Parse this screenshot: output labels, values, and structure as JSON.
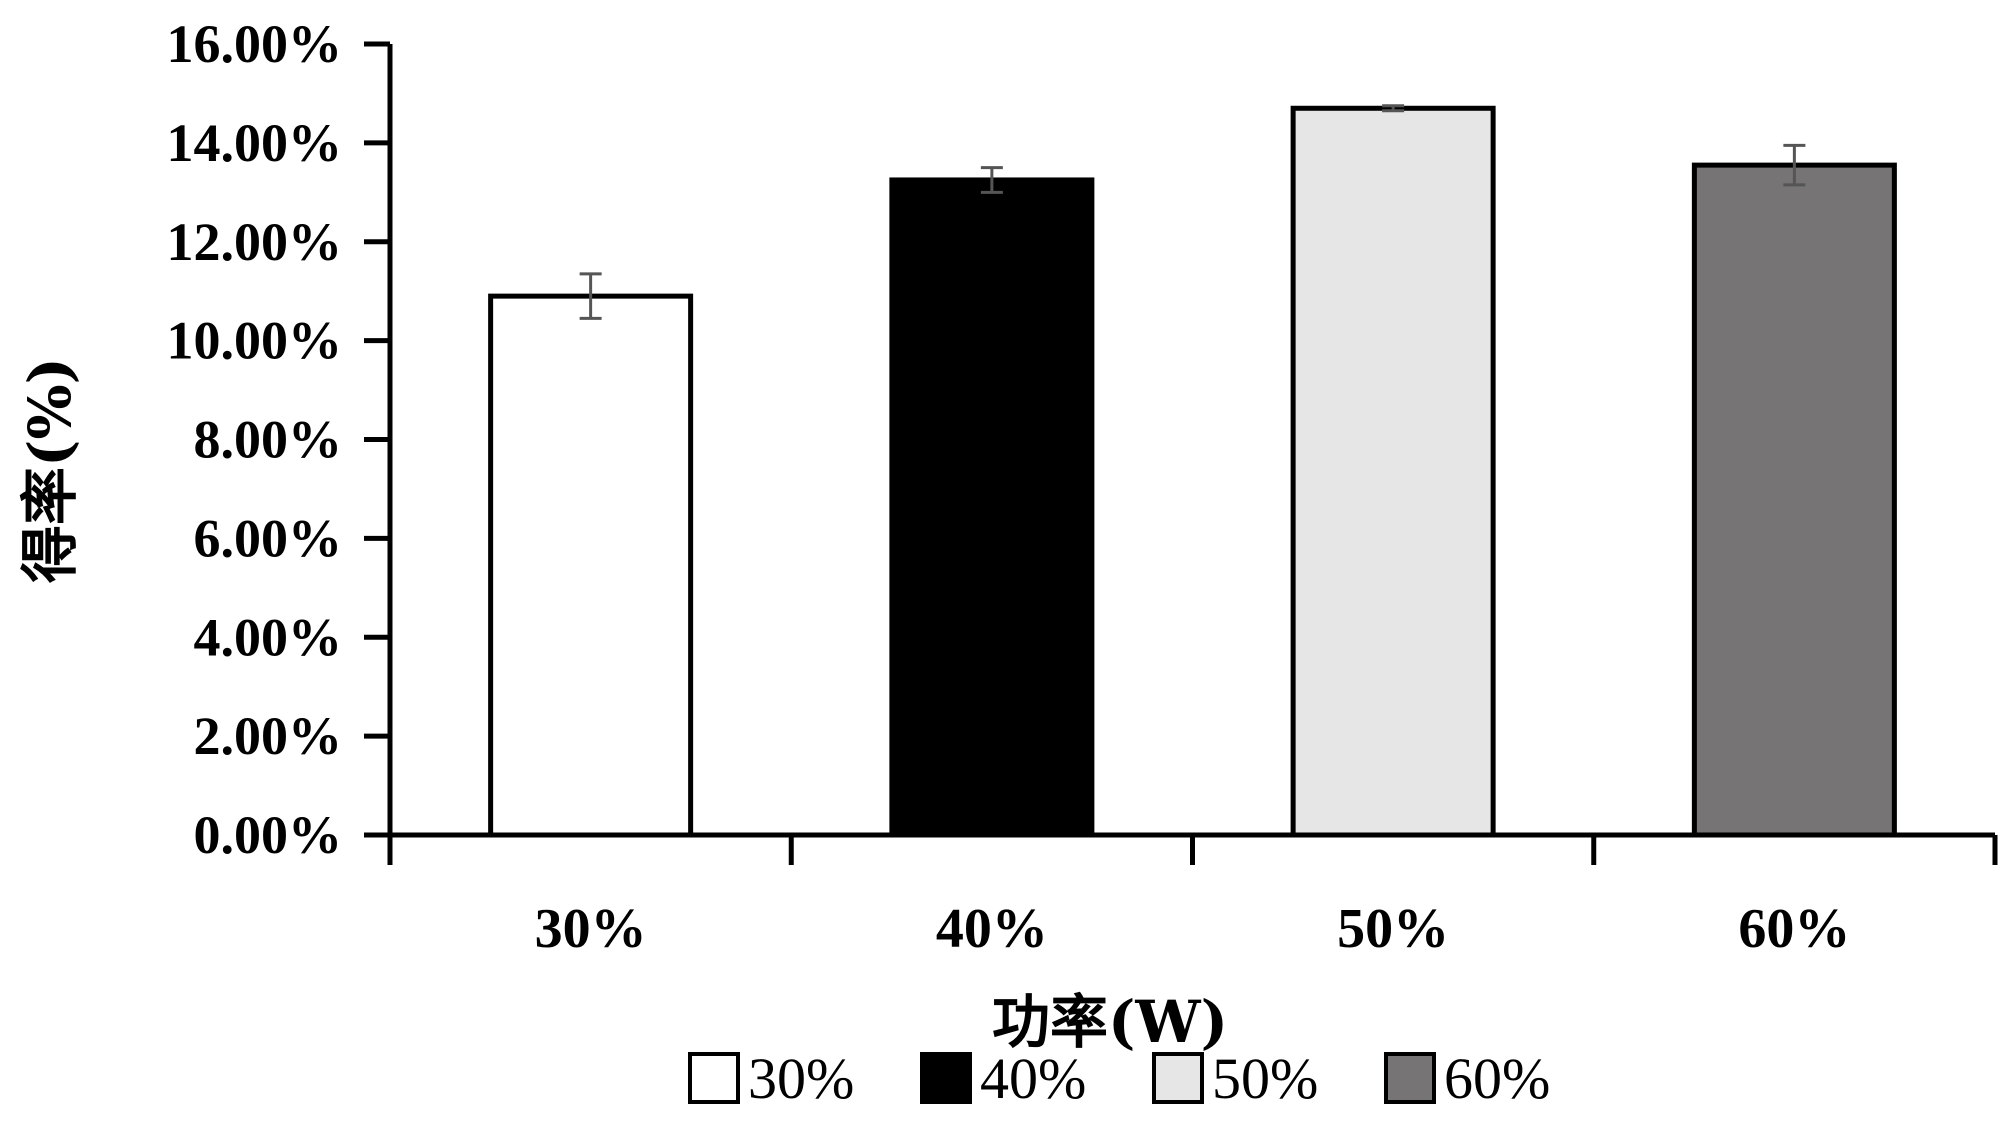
{
  "chart_data": {
    "type": "bar",
    "categories": [
      "30%",
      "40%",
      "50%",
      "60%"
    ],
    "values": [
      10.9,
      13.25,
      14.7,
      13.55
    ],
    "errors": [
      0.45,
      0.25,
      0.05,
      0.4
    ],
    "colors": [
      "#ffffff",
      "#000000",
      "#e6e6e6",
      "#767474"
    ],
    "xlabel": "功率(W)",
    "ylabel": "得率(%)",
    "ylim": [
      0,
      16
    ],
    "yticks": [
      "0.00%",
      "2.00%",
      "4.00%",
      "6.00%",
      "8.00%",
      "10.00%",
      "12.00%",
      "14.00%",
      "16.00%"
    ],
    "legend": [
      "30%",
      "40%",
      "50%",
      "60%"
    ],
    "legend_position": "bottom",
    "grid": false
  }
}
